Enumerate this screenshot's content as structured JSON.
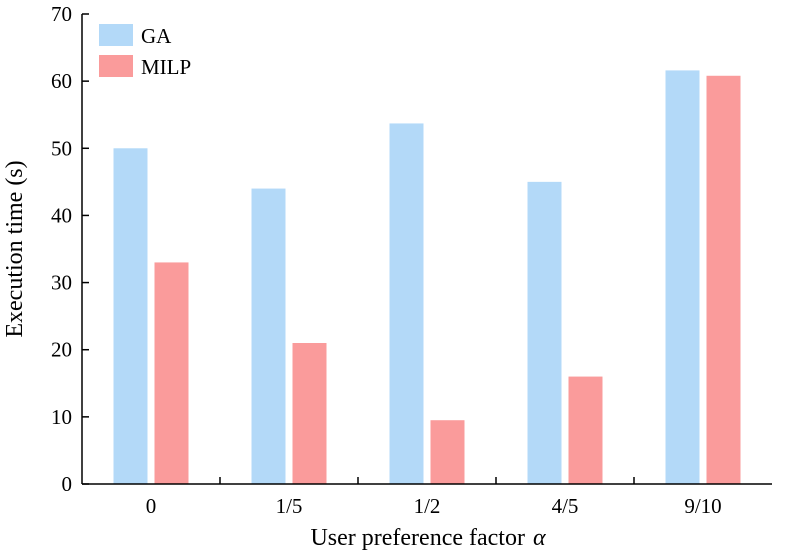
{
  "chart_data": {
    "type": "bar",
    "title": "",
    "xlabel": "User preference factor",
    "xlabel_symbol": "α",
    "ylabel": "Execution time (s)",
    "categories": [
      "0",
      "1/5",
      "1/2",
      "4/5",
      "9/10"
    ],
    "series": [
      {
        "name": "GA",
        "color": "#b3d9f8",
        "values": [
          50,
          44,
          53.7,
          45,
          61.6
        ]
      },
      {
        "name": "MILP",
        "color": "#fa9b9b",
        "values": [
          33,
          21,
          9.5,
          16,
          60.8
        ]
      }
    ],
    "ylim": [
      0,
      70
    ],
    "yticks": [
      0,
      10,
      20,
      30,
      40,
      50,
      60,
      70
    ],
    "grid": false,
    "legend_position": "top-left"
  }
}
